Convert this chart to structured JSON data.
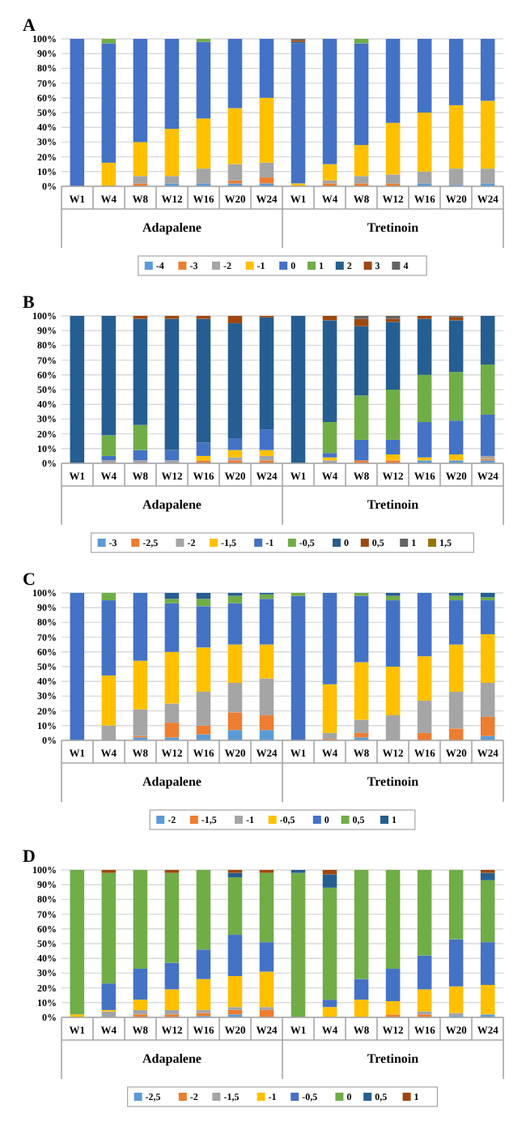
{
  "chart_data": [
    {
      "type": "bar",
      "title": "A",
      "stacked": true,
      "grid": "y",
      "legend": "bottom",
      "categories": [
        "W1",
        "W4",
        "W8",
        "W12",
        "W16",
        "W20",
        "W24",
        "W1",
        "W4",
        "W8",
        "W12",
        "W16",
        "W20",
        "W24"
      ],
      "annotations": [
        "Adapalene",
        "Tretinoin"
      ],
      "ylim": [
        0,
        100
      ],
      "yticks": [
        {
          "value": 0,
          "label": "0%"
        },
        {
          "value": 10,
          "label": "10%"
        },
        {
          "value": 20,
          "label": "20%"
        },
        {
          "value": 30,
          "label": "30%"
        },
        {
          "value": 40,
          "label": "40%"
        },
        {
          "value": 50,
          "label": "50%"
        },
        {
          "value": 60,
          "label": "60%"
        },
        {
          "value": 70,
          "label": "70%"
        },
        {
          "value": 80,
          "label": "80%"
        },
        {
          "value": 90,
          "label": "90%"
        },
        {
          "value": 100,
          "label": "100%"
        }
      ],
      "series": [
        {
          "name": "-4",
          "color": "#5b9bd5",
          "values": [
            0,
            0,
            0,
            2,
            2,
            2,
            2,
            0,
            0,
            0,
            0,
            2,
            1,
            2
          ]
        },
        {
          "name": "-3",
          "color": "#ed7d31",
          "values": [
            0,
            0,
            2,
            0,
            0,
            2,
            4,
            0,
            2,
            2,
            2,
            0,
            0,
            0
          ]
        },
        {
          "name": "-2",
          "color": "#a5a5a5",
          "values": [
            0,
            0,
            5,
            5,
            10,
            11,
            10,
            0,
            2,
            5,
            6,
            8,
            11,
            10
          ]
        },
        {
          "name": "-1",
          "color": "#ffc000",
          "values": [
            0,
            16,
            23,
            32,
            34,
            38,
            44,
            2,
            11,
            21,
            35,
            40,
            43,
            46
          ]
        },
        {
          "name": "0",
          "color": "#4472c4",
          "values": [
            100,
            81,
            70,
            61,
            52,
            47,
            40,
            95,
            85,
            69,
            57,
            50,
            45,
            42
          ]
        },
        {
          "name": "1",
          "color": "#70ad47",
          "values": [
            0,
            3,
            0,
            0,
            2,
            0,
            0,
            0,
            0,
            3,
            0,
            0,
            0,
            0
          ]
        },
        {
          "name": "2",
          "color": "#255e91",
          "values": [
            0,
            0,
            0,
            0,
            0,
            0,
            0,
            1,
            0,
            0,
            0,
            0,
            0,
            0
          ]
        },
        {
          "name": "3",
          "color": "#9e480e",
          "values": [
            0,
            0,
            0,
            0,
            0,
            0,
            0,
            1,
            0,
            0,
            0,
            0,
            0,
            0
          ]
        },
        {
          "name": "4",
          "color": "#636363",
          "values": [
            0,
            0,
            0,
            0,
            0,
            0,
            0,
            1,
            0,
            0,
            0,
            0,
            0,
            0
          ]
        }
      ]
    },
    {
      "type": "bar",
      "title": "B",
      "stacked": true,
      "grid": "y",
      "legend": "bottom",
      "categories": [
        "W1",
        "W4",
        "W8",
        "W12",
        "W16",
        "W20",
        "W24",
        "W1",
        "W4",
        "W8",
        "W12",
        "W16",
        "W20",
        "W24"
      ],
      "annotations": [
        "Adapalene",
        "Tretinoin"
      ],
      "ylim": [
        0,
        100
      ],
      "yticks": [
        {
          "value": 0,
          "label": "0%"
        },
        {
          "value": 10,
          "label": "10%"
        },
        {
          "value": 20,
          "label": "20%"
        },
        {
          "value": 30,
          "label": "30%"
        },
        {
          "value": 40,
          "label": "40%"
        },
        {
          "value": 50,
          "label": "50%"
        },
        {
          "value": 60,
          "label": "60%"
        },
        {
          "value": 70,
          "label": "70%"
        },
        {
          "value": 80,
          "label": "80%"
        },
        {
          "value": 90,
          "label": "90%"
        },
        {
          "value": 100,
          "label": "100%"
        }
      ],
      "series": [
        {
          "name": "-3",
          "color": "#5b9bd5",
          "values": [
            0,
            0,
            0,
            0,
            0,
            0,
            0,
            0,
            0,
            0,
            0,
            2,
            2,
            2
          ]
        },
        {
          "name": "-2,5",
          "color": "#ed7d31",
          "values": [
            0,
            0,
            0,
            0,
            2,
            2,
            2,
            0,
            0,
            2,
            2,
            0,
            0,
            1
          ]
        },
        {
          "name": "-2",
          "color": "#a5a5a5",
          "values": [
            0,
            2,
            2,
            2,
            0,
            2,
            3,
            0,
            2,
            0,
            0,
            0,
            null,
            2
          ]
        },
        {
          "name": "-1,5",
          "color": "#ffc000",
          "values": [
            0,
            0,
            0,
            0,
            3,
            5,
            4,
            0,
            2,
            0,
            4,
            2,
            4,
            0
          ]
        },
        {
          "name": "-1",
          "color": "#4472c4",
          "values": [
            0,
            3,
            7,
            7,
            9,
            8,
            14,
            0,
            3,
            14,
            10,
            24,
            23,
            28
          ]
        },
        {
          "name": "-0,5",
          "color": "#70ad47",
          "values": [
            0,
            14,
            17,
            0,
            0,
            0,
            0,
            0,
            21,
            30,
            34,
            32,
            33,
            34
          ]
        },
        {
          "name": "0",
          "color": "#255e91",
          "values": [
            100,
            81,
            72,
            89,
            84,
            78,
            76,
            100,
            69,
            47,
            46,
            38,
            35,
            33
          ]
        },
        {
          "name": "0,5",
          "color": "#9e480e",
          "values": [
            0,
            0,
            2,
            2,
            2,
            5,
            1,
            0,
            3,
            5,
            2,
            2,
            2,
            0
          ]
        },
        {
          "name": "1",
          "color": "#636363",
          "values": [
            0,
            0,
            0,
            0,
            0,
            0,
            0,
            0,
            0,
            2,
            2,
            0,
            1,
            0
          ]
        },
        {
          "name": "1,5",
          "color": "#997300",
          "values": [
            0,
            0,
            0,
            0,
            0,
            0,
            0,
            0,
            0,
            0,
            0,
            0,
            0,
            0
          ]
        }
      ]
    },
    {
      "type": "bar",
      "title": "C",
      "stacked": true,
      "grid": "y",
      "legend": "bottom",
      "categories": [
        "W1",
        "W4",
        "W8",
        "W12",
        "W16",
        "W20",
        "W24",
        "W1",
        "W4",
        "W8",
        "W12",
        "W16",
        "W20",
        "W24"
      ],
      "annotations": [
        "Adapalene",
        "Tretinoin"
      ],
      "ylim": [
        0,
        100
      ],
      "yticks": [
        {
          "value": 0,
          "label": "0%"
        },
        {
          "value": 10,
          "label": "10%"
        },
        {
          "value": 20,
          "label": "20%"
        },
        {
          "value": 30,
          "label": "30%"
        },
        {
          "value": 40,
          "label": "40%"
        },
        {
          "value": 50,
          "label": "50%"
        },
        {
          "value": 60,
          "label": "60%"
        },
        {
          "value": 70,
          "label": "70%"
        },
        {
          "value": 80,
          "label": "80%"
        },
        {
          "value": 90,
          "label": "90%"
        },
        {
          "value": 100,
          "label": "100%"
        }
      ],
      "series": [
        {
          "name": "-2",
          "color": "#5b9bd5",
          "values": [
            0,
            0,
            2,
            2,
            4,
            7,
            7,
            0,
            0,
            2,
            0,
            0,
            0,
            3
          ]
        },
        {
          "name": "-1,5",
          "color": "#ed7d31",
          "values": [
            0,
            0,
            1,
            10,
            6,
            12,
            10,
            0,
            1,
            3,
            0,
            5,
            8,
            13
          ]
        },
        {
          "name": "-1",
          "color": "#a5a5a5",
          "values": [
            0,
            10,
            18,
            13,
            23,
            20,
            25,
            0,
            4,
            9,
            17,
            22,
            25,
            23
          ]
        },
        {
          "name": "-0,5",
          "color": "#ffc000",
          "values": [
            0,
            34,
            33,
            35,
            30,
            26,
            23,
            0,
            33,
            39,
            33,
            30,
            32,
            33
          ]
        },
        {
          "name": "0",
          "color": "#4472c4",
          "values": [
            100,
            51,
            46,
            33,
            28,
            28,
            31,
            98,
            62,
            45,
            45,
            43,
            30,
            23
          ]
        },
        {
          "name": "0,5",
          "color": "#70ad47",
          "values": [
            0,
            5,
            0,
            3,
            5,
            5,
            3,
            2,
            0,
            2,
            3,
            0,
            3,
            2
          ]
        },
        {
          "name": "1",
          "color": "#255e91",
          "values": [
            0,
            0,
            0,
            4,
            4,
            2,
            1,
            0,
            0,
            0,
            2,
            0,
            2,
            3
          ]
        }
      ]
    },
    {
      "type": "bar",
      "title": "D",
      "stacked": true,
      "grid": "y",
      "legend": "bottom",
      "categories": [
        "W1",
        "W4",
        "W8",
        "W12",
        "W16",
        "W20",
        "W24",
        "W1",
        "W4",
        "W8",
        "W12",
        "W16",
        "W20",
        "W24"
      ],
      "annotations": [
        "Adapalene",
        "Tretinoin"
      ],
      "ylim": [
        0,
        100
      ],
      "yticks": [
        {
          "value": 0,
          "label": "0%"
        },
        {
          "value": 10,
          "label": "10%"
        },
        {
          "value": 20,
          "label": "20%"
        },
        {
          "value": 30,
          "label": "30%"
        },
        {
          "value": 40,
          "label": "40%"
        },
        {
          "value": 50,
          "label": "50%"
        },
        {
          "value": 60,
          "label": "60%"
        },
        {
          "value": 70,
          "label": "70%"
        },
        {
          "value": 80,
          "label": "80%"
        },
        {
          "value": 90,
          "label": "90%"
        },
        {
          "value": 100,
          "label": "100%"
        }
      ],
      "series": [
        {
          "name": "-2,5",
          "color": "#5b9bd5",
          "values": [
            0,
            0,
            0,
            0,
            1,
            2,
            0,
            0,
            0,
            0,
            0,
            0,
            1,
            2
          ]
        },
        {
          "name": "-2",
          "color": "#ed7d31",
          "values": [
            0,
            0,
            2,
            2,
            2,
            3,
            5,
            0,
            0,
            0,
            2,
            2,
            0,
            0
          ]
        },
        {
          "name": "-1,5",
          "color": "#a5a5a5",
          "values": [
            0,
            4,
            3,
            3,
            2,
            2,
            2,
            0,
            0,
            0,
            0,
            2,
            2,
            null
          ]
        },
        {
          "name": "-1",
          "color": "#ffc000",
          "values": [
            2,
            1,
            7,
            14,
            21,
            21,
            24,
            0,
            7,
            12,
            9,
            15,
            18,
            20
          ]
        },
        {
          "name": "-0,5",
          "color": "#4472c4",
          "values": [
            0,
            18,
            21,
            18,
            20,
            28,
            20,
            0,
            5,
            14,
            22,
            23,
            32,
            29
          ]
        },
        {
          "name": "0",
          "color": "#70ad47",
          "values": [
            98,
            75,
            67,
            61,
            54,
            39,
            47,
            98,
            76,
            74,
            67,
            58,
            47,
            42
          ]
        },
        {
          "name": "0,5",
          "color": "#255e91",
          "values": [
            0,
            0,
            0,
            0,
            0,
            3,
            0,
            2,
            9,
            0,
            0,
            0,
            0,
            5
          ]
        },
        {
          "name": "1",
          "color": "#9e480e",
          "values": [
            0,
            2,
            0,
            2,
            0,
            2,
            2,
            0,
            3,
            0,
            0,
            0,
            0,
            2
          ]
        }
      ]
    }
  ]
}
